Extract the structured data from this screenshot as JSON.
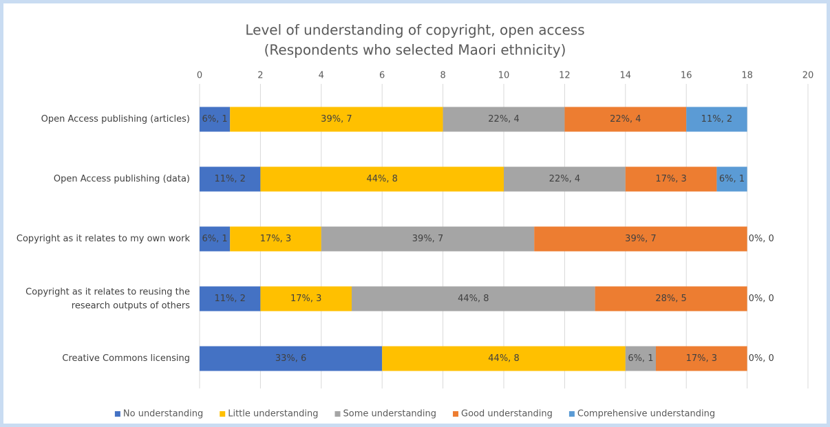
{
  "chart_data": {
    "type": "stacked_bar_horizontal",
    "title": "Level of understanding of copyright, open access",
    "subtitle": "(Respondents who selected Maori ethnicity)",
    "categories": [
      "Open Access publishing (articles)",
      "Open Access publishing (data)",
      "Copyright as it relates to my own work",
      "Copyright as it relates to reusing the research outputs of others",
      "Creative Commons licensing"
    ],
    "series": [
      {
        "name": "No understanding",
        "color": "#4472c4",
        "values": [
          1,
          2,
          1,
          2,
          6
        ],
        "value_labels": [
          "6%, 1",
          "11%, 2",
          "6%, 1",
          "11%, 2",
          "33%, 6"
        ]
      },
      {
        "name": "Little understanding",
        "color": "#ffc000",
        "values": [
          7,
          8,
          3,
          3,
          8
        ],
        "value_labels": [
          "39%, 7",
          "44%, 8",
          "17%, 3",
          "17%, 3",
          "44%, 8"
        ]
      },
      {
        "name": "Some understanding",
        "color": "#a5a5a5",
        "values": [
          4,
          4,
          7,
          8,
          1
        ],
        "value_labels": [
          "22%, 4",
          "22%, 4",
          "39%, 7",
          "44%, 8",
          "6%, 1"
        ]
      },
      {
        "name": "Good understanding",
        "color": "#ed7d31",
        "values": [
          4,
          3,
          7,
          5,
          3
        ],
        "value_labels": [
          "22%, 4",
          "17%, 3",
          "39%, 7",
          "28%, 5",
          "17%, 3"
        ]
      },
      {
        "name": "Comprehensive understanding",
        "color": "#5b9bd5",
        "values": [
          2,
          1,
          0,
          0,
          0
        ],
        "value_labels": [
          "11%, 2",
          "6%, 1",
          "0%, 0",
          "0%, 0",
          "0%, 0"
        ]
      }
    ],
    "xlim": [
      0,
      20
    ],
    "xticks": [
      0,
      2,
      4,
      6,
      8,
      10,
      12,
      14,
      16,
      18,
      20
    ],
    "grid": true,
    "legend": "bottom"
  }
}
